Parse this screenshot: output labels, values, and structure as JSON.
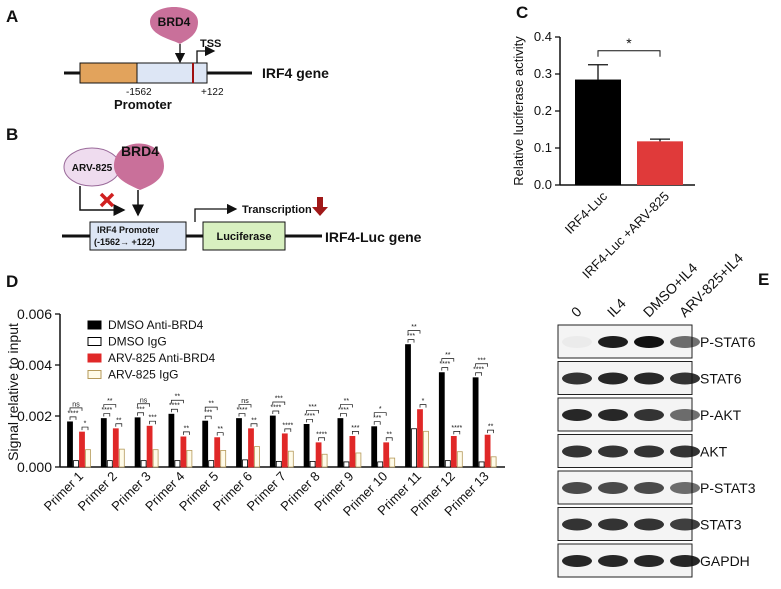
{
  "panel_labels": [
    "A",
    "B",
    "C",
    "D",
    "E"
  ],
  "panel_a": {
    "protein": "BRD4",
    "tss": "TSS",
    "gene": "IRF4 gene",
    "start": "-1562",
    "end": "+122",
    "region": "Promoter"
  },
  "panel_b": {
    "drug": "ARV-825",
    "protein": "BRD4",
    "box_line1": "IRF4  Promoter",
    "box_line2": "(-1562→ +122)",
    "transcription": "Transcription",
    "reporter": "Luciferase",
    "gene": "IRF4-Luc gene"
  },
  "chart_data": [
    {
      "type": "bar",
      "ylabel": "Relative luciferase activity",
      "categories": [
        "IRF4-Luc",
        "IRF4-Luc +ARV-825"
      ],
      "values": [
        0.285,
        0.118
      ],
      "errors": [
        0.04,
        0.006
      ],
      "colors": [
        "#000000",
        "#e03a3a"
      ],
      "ylim": [
        0,
        0.4
      ],
      "yticks": [
        {
          "value": 0,
          "label": "0.0"
        },
        0.1,
        0.2,
        0.3,
        0.4
      ],
      "significance": "*"
    },
    {
      "type": "grouped-bar",
      "ylabel": "Signal relative to input",
      "categories": [
        "Primer 1",
        "Primer 2",
        "Primer 3",
        "Primer 4",
        "Primer 5",
        "Primer 6",
        "Primer 7",
        "Primer 8",
        "Primer 9",
        "Primer 10",
        "Primer 11",
        "Primer 12",
        "Primer 13"
      ],
      "series": [
        {
          "name": "DMSO Anti-BRD4",
          "color": "#000000",
          "edge": "#000000",
          "values": [
            0.00177,
            0.0019,
            0.00193,
            0.00207,
            0.0018,
            0.0019,
            0.002,
            0.00167,
            0.0019,
            0.00158,
            0.0048,
            0.0037,
            0.0035
          ]
        },
        {
          "name": "DMSO IgG",
          "color": "#ffffff",
          "edge": "#000000",
          "values": [
            0.00025,
            0.00025,
            0.00025,
            0.00025,
            0.00025,
            0.00028,
            0.00022,
            0.00022,
            0.0002,
            0.0002,
            0.0015,
            0.00025,
            0.0002
          ]
        },
        {
          "name": "ARV-825 Anti-BRD4",
          "color": "#e02828",
          "edge": "#e02828",
          "values": [
            0.00137,
            0.0015,
            0.0016,
            0.00118,
            0.00115,
            0.0015,
            0.0013,
            0.00095,
            0.0012,
            0.00095,
            0.00225,
            0.0012,
            0.00125
          ]
        },
        {
          "name": "ARV-825 IgG",
          "color": "#fffbe8",
          "edge": "#b59a5a",
          "values": [
            0.00068,
            0.0007,
            0.00068,
            0.00065,
            0.00065,
            0.0008,
            0.00062,
            0.0005,
            0.00055,
            0.00035,
            0.0014,
            0.0006,
            0.0004
          ]
        }
      ],
      "ylim": [
        0,
        0.006
      ],
      "yticks": [
        {
          "value": 0,
          "label": "0.000"
        },
        0.002,
        0.004,
        0.006
      ],
      "legend": "upper left",
      "significance": [
        [
          "ns",
          "****",
          "*"
        ],
        [
          "**",
          "****",
          "**"
        ],
        [
          "ns",
          "***",
          "***"
        ],
        [
          "**",
          "****",
          "**"
        ],
        [
          "**",
          "***",
          "**"
        ],
        [
          "ns",
          "****",
          "**"
        ],
        [
          "***",
          "****",
          "****"
        ],
        [
          "***",
          "****",
          "****"
        ],
        [
          "**",
          "****",
          "***"
        ],
        [
          "*",
          "***",
          "**"
        ],
        [
          "**",
          "***",
          "*"
        ],
        [
          "**",
          "****",
          "****"
        ],
        [
          "***",
          "****",
          "**"
        ]
      ]
    }
  ],
  "panel_e": {
    "lanes": [
      "0",
      "IL4",
      "DMSO+IL4",
      "ARV-825+IL4"
    ],
    "rows": [
      "P-STAT6",
      "STAT6",
      "P-AKT",
      "AKT",
      "P-STAT3",
      "STAT3",
      "GAPDH"
    ]
  }
}
